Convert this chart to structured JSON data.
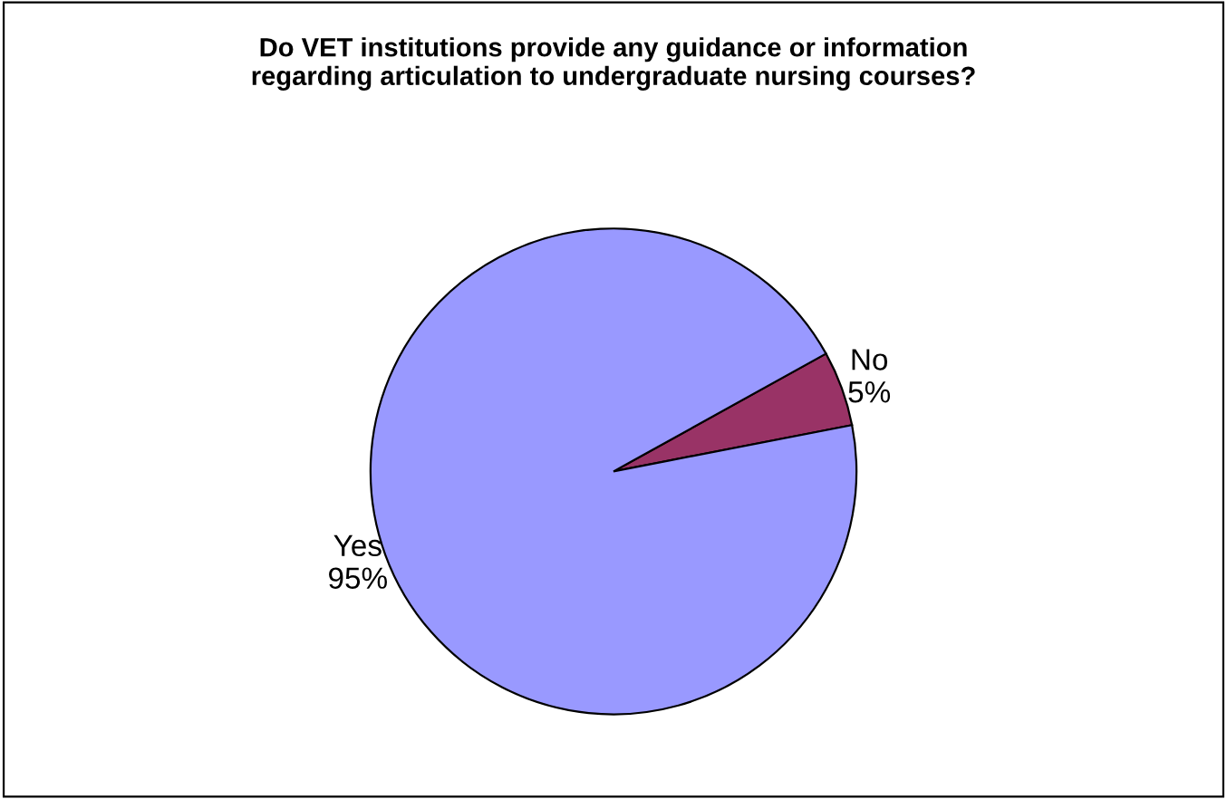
{
  "chart_data": {
    "type": "pie",
    "title": "Do VET institutions provide any guidance or information\nregarding articulation to undergraduate nursing courses?",
    "categories": [
      "No",
      "Yes"
    ],
    "values": [
      5,
      95
    ],
    "value_labels": [
      "5%",
      "95%"
    ],
    "colors": [
      "#993366",
      "#9999ff"
    ],
    "legend": false
  }
}
